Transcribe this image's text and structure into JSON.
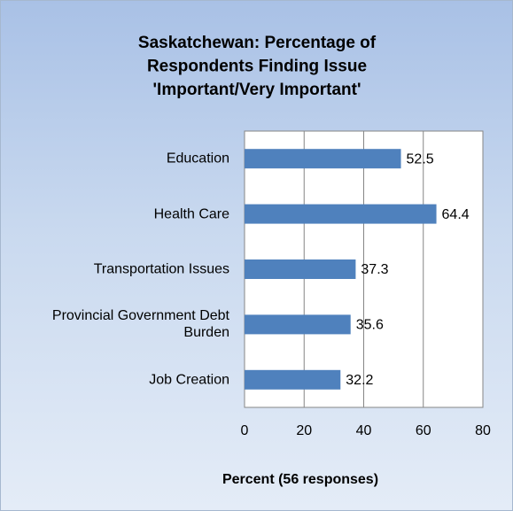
{
  "chart_data": {
    "type": "bar",
    "orientation": "horizontal",
    "title": [
      "Saskatchewan: Percentage of",
      "Respondents Finding Issue",
      "'Important/Very Important'"
    ],
    "categories": [
      "Education",
      "Health Care",
      "Transportation Issues",
      "Provincial Government Debt Burden",
      "Job Creation"
    ],
    "values": [
      52.5,
      64.4,
      37.3,
      35.6,
      32.2
    ],
    "color": "#4f81bd",
    "xlim": [
      0,
      80
    ],
    "xticks": [
      0,
      20,
      40,
      60,
      80
    ],
    "xlabel": "Percent (56 responses)",
    "grid": true
  }
}
